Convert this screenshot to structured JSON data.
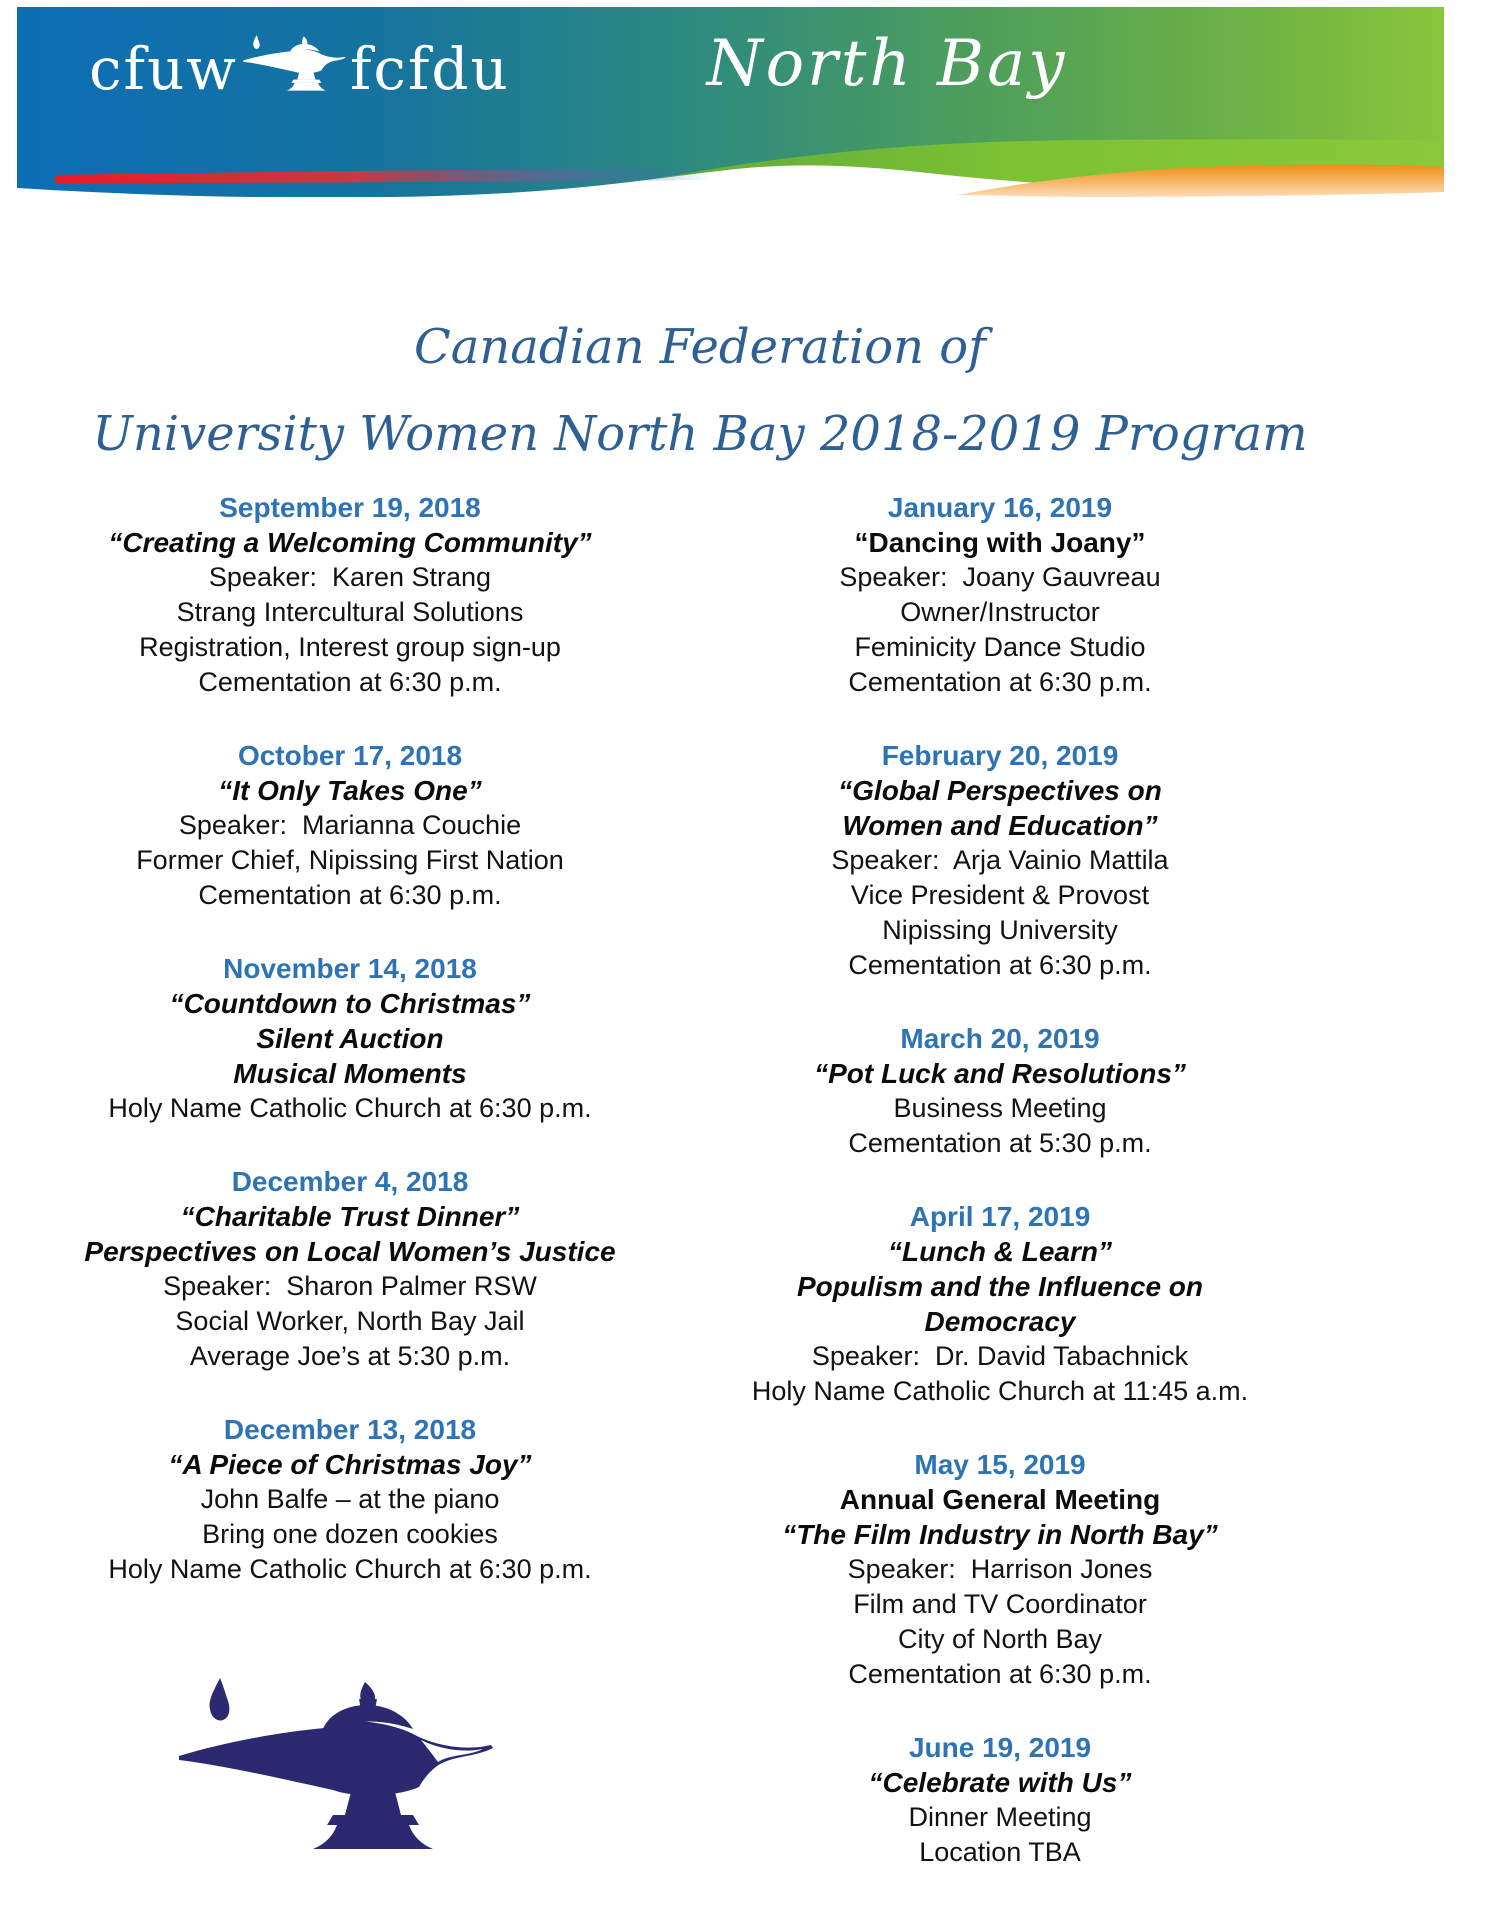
{
  "banner": {
    "org_left": "cfuw",
    "org_right": "fcfdu",
    "region": "North Bay",
    "lamp_icon": "genie-lamp",
    "colors": {
      "gradient_left_blue": "#0d6db5",
      "gradient_right_green": "#8ac63b",
      "wave_lime": "#7cc233",
      "wave_orange": "#ef8d13",
      "stripe_red": "#e41e26"
    }
  },
  "title": {
    "line1": "Canadian Federation of",
    "line2": "University Women North Bay 2018-2019 Program",
    "color": "#2e6095"
  },
  "program": {
    "date_color": "#2e74b5",
    "left_column": [
      {
        "date": "September 19, 2018",
        "lines": [
          {
            "text": "“Creating a Welcoming Community”",
            "style": "em"
          },
          {
            "text": "Speaker:  Karen Strang",
            "style": "body"
          },
          {
            "text": "Strang Intercultural Solutions",
            "style": "body"
          },
          {
            "text": "Registration, Interest group sign-up",
            "style": "body"
          },
          {
            "text": "Cementation at 6:30 p.m.",
            "style": "body"
          }
        ]
      },
      {
        "date": "October 17, 2018",
        "lines": [
          {
            "text": "“It Only Takes One”",
            "style": "em"
          },
          {
            "text": "Speaker:  Marianna Couchie",
            "style": "body"
          },
          {
            "text": "Former Chief, Nipissing First Nation",
            "style": "body"
          },
          {
            "text": "Cementation at 6:30 p.m.",
            "style": "body"
          }
        ]
      },
      {
        "date": "November 14, 2018",
        "lines": [
          {
            "text": "“Countdown to Christmas”",
            "style": "em"
          },
          {
            "text": "Silent Auction",
            "style": "em"
          },
          {
            "text": "Musical Moments",
            "style": "em"
          },
          {
            "text": "Holy Name Catholic Church at 6:30 p.m.",
            "style": "body"
          }
        ]
      },
      {
        "date": "December 4, 2018",
        "lines": [
          {
            "text": "“Charitable Trust Dinner”",
            "style": "em"
          },
          {
            "text": "Perspectives on Local Women’s Justice",
            "style": "em"
          },
          {
            "text": "Speaker:  Sharon Palmer RSW",
            "style": "body"
          },
          {
            "text": "Social Worker, North Bay Jail",
            "style": "body"
          },
          {
            "text": "Average Joe’s at 5:30 p.m.",
            "style": "body"
          }
        ]
      },
      {
        "date": "December 13, 2018",
        "lines": [
          {
            "text": "“A Piece of Christmas Joy”",
            "style": "em"
          },
          {
            "text": "John Balfe – at the piano",
            "style": "body"
          },
          {
            "text": "Bring one dozen cookies",
            "style": "body"
          },
          {
            "text": "Holy Name Catholic Church at 6:30 p.m.",
            "style": "body"
          }
        ]
      }
    ],
    "right_column": [
      {
        "date": "January 16, 2019",
        "lines": [
          {
            "text": "“Dancing with Joany”",
            "style": "bold"
          },
          {
            "text": "Speaker:  Joany Gauvreau",
            "style": "body"
          },
          {
            "text": "Owner/Instructor",
            "style": "body"
          },
          {
            "text": "Feminicity Dance Studio",
            "style": "body"
          },
          {
            "text": "Cementation at 6:30 p.m.",
            "style": "body"
          }
        ]
      },
      {
        "date": "February 20, 2019",
        "lines": [
          {
            "text": "“Global Perspectives on",
            "style": "em"
          },
          {
            "text": "Women and Education”",
            "style": "em"
          },
          {
            "text": "Speaker:  Arja Vainio Mattila",
            "style": "body"
          },
          {
            "text": "Vice President & Provost",
            "style": "body"
          },
          {
            "text": "Nipissing University",
            "style": "body"
          },
          {
            "text": "Cementation at 6:30 p.m.",
            "style": "body"
          }
        ]
      },
      {
        "date": "March 20, 2019",
        "lines": [
          {
            "text": "“Pot Luck and Resolutions”",
            "style": "em"
          },
          {
            "text": "Business Meeting",
            "style": "body"
          },
          {
            "text": "Cementation at 5:30 p.m.",
            "style": "body"
          }
        ]
      },
      {
        "date": "April 17, 2019",
        "lines": [
          {
            "text": "“Lunch & Learn”",
            "style": "em"
          },
          {
            "text": "Populism and the Influence on Democracy",
            "style": "em"
          },
          {
            "text": "Speaker:  Dr. David Tabachnick",
            "style": "body"
          },
          {
            "text": "Holy Name Catholic Church at 11:45 a.m.",
            "style": "body"
          }
        ]
      },
      {
        "date": "May 15, 2019",
        "lines": [
          {
            "text": "Annual General Meeting",
            "style": "bold"
          },
          {
            "text": "“The Film Industry in North Bay”",
            "style": "em"
          },
          {
            "text": "Speaker:  Harrison Jones",
            "style": "body"
          },
          {
            "text": "Film and TV Coordinator",
            "style": "body"
          },
          {
            "text": "City of North Bay",
            "style": "body"
          },
          {
            "text": "Cementation at 6:30 p.m.",
            "style": "body"
          }
        ]
      },
      {
        "date": "June 19, 2019",
        "lines": [
          {
            "text": "“Celebrate with Us”",
            "style": "em"
          },
          {
            "text": "Dinner Meeting",
            "style": "body"
          },
          {
            "text": "Location TBA",
            "style": "body"
          }
        ]
      }
    ]
  },
  "footer": {
    "lamp_icon": "genie-lamp",
    "lamp_color": "#2b2a71"
  }
}
